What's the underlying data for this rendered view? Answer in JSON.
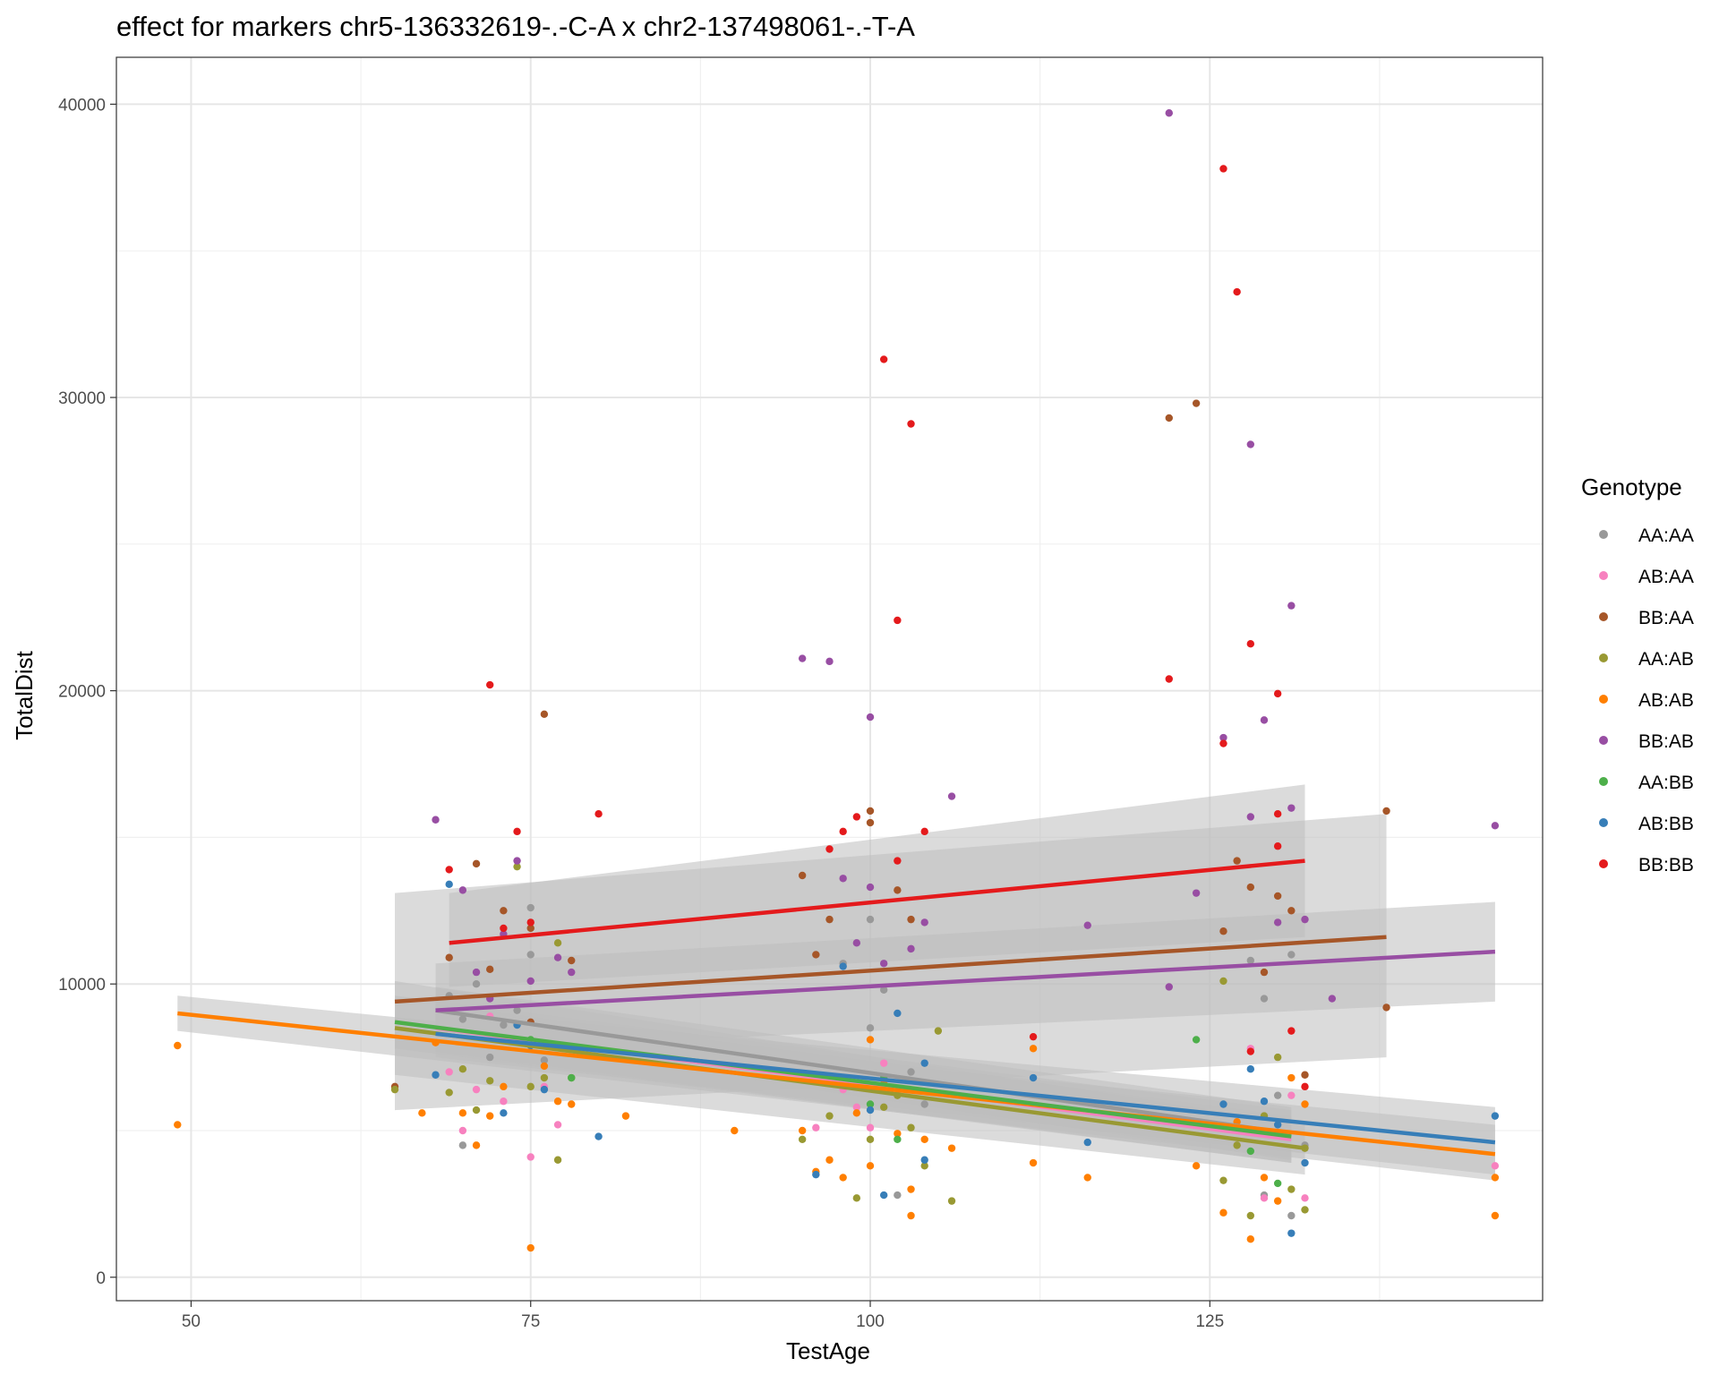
{
  "chart_data": {
    "type": "scatter",
    "title": "effect for markers chr5-136332619-.-C-A x chr2-137498061-.-T-A",
    "xlabel": "TestAge",
    "ylabel": "TotalDist",
    "xlim": [
      44.5,
      149.5
    ],
    "ylim": [
      -800,
      41600
    ],
    "x_ticks": [
      50,
      75,
      100,
      125
    ],
    "y_ticks": [
      0,
      10000,
      20000,
      30000,
      40000
    ],
    "x_tick_labels": [
      "50",
      "75",
      "100",
      "125"
    ],
    "y_tick_labels": [
      "0",
      "10000",
      "20000",
      "30000",
      "40000"
    ],
    "grid": true,
    "legend": {
      "title": "Genotype",
      "position": "right"
    },
    "series": [
      {
        "name": "AA:AA",
        "color": "#999999",
        "points": [
          [
            69,
            9600
          ],
          [
            70,
            8800
          ],
          [
            70,
            4500
          ],
          [
            71,
            10000
          ],
          [
            72,
            7500
          ],
          [
            73,
            8600
          ],
          [
            74,
            9100
          ],
          [
            75,
            11000
          ],
          [
            75,
            12600
          ],
          [
            76,
            7400
          ],
          [
            98,
            10700
          ],
          [
            100,
            12200
          ],
          [
            100,
            8500
          ],
          [
            101,
            9800
          ],
          [
            102,
            2800
          ],
          [
            103,
            7000
          ],
          [
            104,
            5900
          ],
          [
            128,
            10800
          ],
          [
            129,
            2800
          ],
          [
            129,
            9500
          ],
          [
            130,
            6200
          ],
          [
            131,
            2100
          ],
          [
            131,
            11000
          ],
          [
            132,
            4500
          ]
        ],
        "fit": {
          "x": [
            68,
            131
          ],
          "y": [
            9100,
            4900
          ]
        }
      },
      {
        "name": "AB:AA",
        "color": "#F781BF",
        "points": [
          [
            69,
            7000
          ],
          [
            70,
            5000
          ],
          [
            71,
            6400
          ],
          [
            72,
            8900
          ],
          [
            73,
            6000
          ],
          [
            75,
            4100
          ],
          [
            76,
            6500
          ],
          [
            77,
            5200
          ],
          [
            96,
            5100
          ],
          [
            98,
            6400
          ],
          [
            99,
            5800
          ],
          [
            100,
            5100
          ],
          [
            101,
            7300
          ],
          [
            128,
            5000
          ],
          [
            128,
            7800
          ],
          [
            129,
            2700
          ],
          [
            130,
            4900
          ],
          [
            131,
            6200
          ],
          [
            132,
            2700
          ],
          [
            146,
            3800
          ]
        ],
        "fit": {
          "x": [
            68,
            131
          ],
          "y": [
            8500,
            4700
          ]
        }
      },
      {
        "name": "BB:AA",
        "color": "#A65628",
        "points": [
          [
            65,
            6500
          ],
          [
            69,
            10900
          ],
          [
            71,
            14100
          ],
          [
            72,
            10500
          ],
          [
            73,
            12500
          ],
          [
            75,
            11900
          ],
          [
            75,
            8700
          ],
          [
            76,
            19200
          ],
          [
            78,
            10800
          ],
          [
            95,
            13700
          ],
          [
            96,
            11000
          ],
          [
            97,
            12200
          ],
          [
            100,
            15900
          ],
          [
            100,
            15500
          ],
          [
            102,
            13200
          ],
          [
            103,
            12200
          ],
          [
            122,
            29300
          ],
          [
            124,
            29800
          ],
          [
            126,
            11800
          ],
          [
            127,
            14200
          ],
          [
            128,
            13300
          ],
          [
            129,
            10400
          ],
          [
            130,
            13000
          ],
          [
            131,
            12500
          ],
          [
            132,
            6900
          ],
          [
            138,
            15900
          ],
          [
            138,
            9200
          ]
        ],
        "fit": {
          "x": [
            65,
            138
          ],
          "y": [
            9400,
            11600
          ]
        }
      },
      {
        "name": "AA:AB",
        "color": "#999933",
        "points": [
          [
            65,
            6400
          ],
          [
            69,
            6300
          ],
          [
            70,
            7100
          ],
          [
            71,
            5700
          ],
          [
            72,
            6700
          ],
          [
            74,
            14000
          ],
          [
            75,
            8000
          ],
          [
            75,
            6500
          ],
          [
            76,
            6800
          ],
          [
            77,
            11400
          ],
          [
            77,
            4000
          ],
          [
            78,
            6800
          ],
          [
            95,
            4700
          ],
          [
            97,
            5500
          ],
          [
            99,
            2700
          ],
          [
            100,
            4700
          ],
          [
            101,
            5800
          ],
          [
            102,
            6200
          ],
          [
            103,
            5100
          ],
          [
            104,
            3800
          ],
          [
            105,
            8400
          ],
          [
            106,
            2600
          ],
          [
            126,
            3300
          ],
          [
            126,
            10100
          ],
          [
            127,
            4500
          ],
          [
            128,
            2100
          ],
          [
            129,
            5500
          ],
          [
            130,
            7500
          ],
          [
            131,
            3000
          ],
          [
            132,
            2300
          ],
          [
            132,
            4400
          ]
        ],
        "fit": {
          "x": [
            65,
            132
          ],
          "y": [
            8500,
            4400
          ]
        }
      },
      {
        "name": "AB:AB",
        "color": "#FF7F00",
        "points": [
          [
            49,
            7900
          ],
          [
            49,
            5200
          ],
          [
            67,
            5600
          ],
          [
            68,
            8000
          ],
          [
            70,
            5600
          ],
          [
            71,
            4500
          ],
          [
            72,
            5500
          ],
          [
            73,
            6500
          ],
          [
            75,
            1000
          ],
          [
            76,
            7200
          ],
          [
            77,
            6000
          ],
          [
            78,
            5900
          ],
          [
            82,
            5500
          ],
          [
            90,
            5000
          ],
          [
            95,
            5000
          ],
          [
            96,
            3600
          ],
          [
            97,
            4000
          ],
          [
            98,
            3400
          ],
          [
            99,
            5600
          ],
          [
            100,
            3800
          ],
          [
            100,
            8100
          ],
          [
            101,
            6600
          ],
          [
            102,
            4900
          ],
          [
            103,
            2100
          ],
          [
            103,
            3000
          ],
          [
            104,
            4700
          ],
          [
            106,
            4400
          ],
          [
            112,
            3900
          ],
          [
            112,
            7800
          ],
          [
            116,
            3400
          ],
          [
            124,
            3800
          ],
          [
            126,
            2200
          ],
          [
            127,
            5300
          ],
          [
            128,
            1300
          ],
          [
            129,
            3400
          ],
          [
            130,
            2600
          ],
          [
            131,
            6800
          ],
          [
            132,
            5900
          ],
          [
            146,
            2100
          ],
          [
            146,
            3400
          ]
        ],
        "fit": {
          "x": [
            49,
            146
          ],
          "y": [
            9000,
            4200
          ]
        }
      },
      {
        "name": "BB:AB",
        "color": "#984EA3",
        "points": [
          [
            68,
            15600
          ],
          [
            70,
            13200
          ],
          [
            71,
            10400
          ],
          [
            72,
            9500
          ],
          [
            73,
            11700
          ],
          [
            74,
            14200
          ],
          [
            75,
            10100
          ],
          [
            77,
            10900
          ],
          [
            78,
            10400
          ],
          [
            95,
            21100
          ],
          [
            97,
            21000
          ],
          [
            98,
            13600
          ],
          [
            99,
            11400
          ],
          [
            100,
            19100
          ],
          [
            100,
            13300
          ],
          [
            101,
            10700
          ],
          [
            103,
            11200
          ],
          [
            104,
            12100
          ],
          [
            106,
            16400
          ],
          [
            116,
            12000
          ],
          [
            122,
            39700
          ],
          [
            122,
            9900
          ],
          [
            124,
            13100
          ],
          [
            126,
            18400
          ],
          [
            128,
            28400
          ],
          [
            128,
            15700
          ],
          [
            129,
            19000
          ],
          [
            130,
            12100
          ],
          [
            131,
            22900
          ],
          [
            131,
            16000
          ],
          [
            132,
            12200
          ],
          [
            134,
            9500
          ],
          [
            146,
            15400
          ]
        ],
        "fit": {
          "x": [
            68,
            146
          ],
          "y": [
            9100,
            11100
          ]
        }
      },
      {
        "name": "AA:BB",
        "color": "#4DAF4A",
        "points": [
          [
            75,
            8100
          ],
          [
            78,
            6800
          ],
          [
            100,
            5900
          ],
          [
            101,
            6800
          ],
          [
            102,
            4700
          ],
          [
            124,
            8100
          ],
          [
            128,
            4300
          ],
          [
            130,
            3200
          ]
        ],
        "fit": {
          "x": [
            65,
            131
          ],
          "y": [
            8700,
            4800
          ]
        }
      },
      {
        "name": "AB:BB",
        "color": "#377EB8",
        "points": [
          [
            68,
            6900
          ],
          [
            69,
            13400
          ],
          [
            73,
            5600
          ],
          [
            74,
            8600
          ],
          [
            75,
            7900
          ],
          [
            76,
            6400
          ],
          [
            80,
            4800
          ],
          [
            96,
            3500
          ],
          [
            98,
            10600
          ],
          [
            100,
            5700
          ],
          [
            101,
            2800
          ],
          [
            102,
            9000
          ],
          [
            104,
            4000
          ],
          [
            104,
            7300
          ],
          [
            112,
            6800
          ],
          [
            116,
            4600
          ],
          [
            126,
            5900
          ],
          [
            128,
            7100
          ],
          [
            129,
            6000
          ],
          [
            130,
            5200
          ],
          [
            131,
            1500
          ],
          [
            132,
            3900
          ],
          [
            146,
            5500
          ]
        ],
        "fit": {
          "x": [
            68,
            146
          ],
          "y": [
            8300,
            4600
          ]
        }
      },
      {
        "name": "BB:BB",
        "color": "#E41A1C",
        "points": [
          [
            69,
            13900
          ],
          [
            72,
            20200
          ],
          [
            73,
            11900
          ],
          [
            74,
            15200
          ],
          [
            75,
            12100
          ],
          [
            80,
            15800
          ],
          [
            97,
            14600
          ],
          [
            98,
            15200
          ],
          [
            99,
            15700
          ],
          [
            101,
            31300
          ],
          [
            102,
            22400
          ],
          [
            102,
            14200
          ],
          [
            103,
            29100
          ],
          [
            104,
            15200
          ],
          [
            112,
            8200
          ],
          [
            122,
            20400
          ],
          [
            126,
            37800
          ],
          [
            126,
            18200
          ],
          [
            127,
            33600
          ],
          [
            128,
            21600
          ],
          [
            128,
            7700
          ],
          [
            130,
            19900
          ],
          [
            130,
            15800
          ],
          [
            130,
            14700
          ],
          [
            131,
            8400
          ],
          [
            132,
            6500
          ]
        ],
        "fit": {
          "x": [
            69,
            132
          ],
          "y": [
            11400,
            14200
          ]
        }
      }
    ],
    "confidence_bands": [
      {
        "series": "BB:BB",
        "x": [
          69,
          132
        ],
        "upper": [
          13100,
          16800
        ],
        "lower": [
          9900,
          11600
        ]
      },
      {
        "series": "BB:AA",
        "x": [
          65,
          138
        ],
        "upper": [
          13100,
          15800
        ],
        "lower": [
          5700,
          7500
        ]
      },
      {
        "series": "BB:AB",
        "x": [
          68,
          146
        ],
        "upper": [
          10700,
          12800
        ],
        "lower": [
          7700,
          9400
        ]
      },
      {
        "series": "AA:AB",
        "x": [
          65,
          132
        ],
        "upper": [
          10100,
          5200
        ],
        "lower": [
          6900,
          3500
        ]
      },
      {
        "series": "AB:AB",
        "x": [
          49,
          146
        ],
        "upper": [
          9600,
          5200
        ],
        "lower": [
          8400,
          3300
        ]
      },
      {
        "series": "AB:BB",
        "x": [
          68,
          146
        ],
        "upper": [
          9100,
          5800
        ],
        "lower": [
          7500,
          3500
        ]
      },
      {
        "series": "AA:BB",
        "x": [
          65,
          131
        ],
        "upper": [
          9600,
          5700
        ],
        "lower": [
          7800,
          3900
        ]
      },
      {
        "series": "AB:AA",
        "x": [
          68,
          131
        ],
        "upper": [
          9300,
          5500
        ],
        "lower": [
          7700,
          3900
        ]
      },
      {
        "series": "AA:AA",
        "x": [
          68,
          131
        ],
        "upper": [
          9900,
          5800
        ],
        "lower": [
          8300,
          4000
        ]
      }
    ],
    "band_color": "#bebebe"
  }
}
